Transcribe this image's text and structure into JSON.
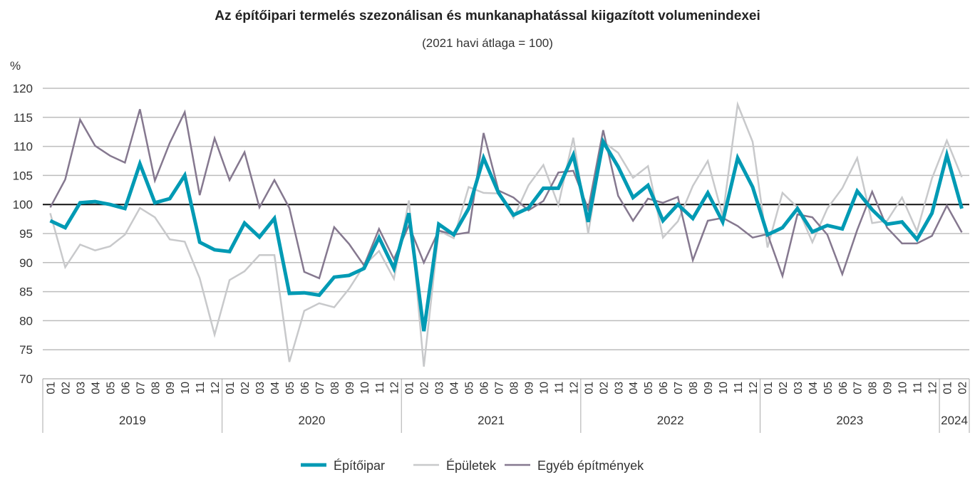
{
  "chart_data": {
    "type": "line",
    "title": "Az építőipari termelés szezonálisan és munkanaphatással kiigazított volumenindexei",
    "subtitle": "(2021 havi átlaga = 100)",
    "ylabel": "%",
    "xlabel": "",
    "ylim": [
      70,
      120
    ],
    "yticks": [
      70,
      75,
      80,
      85,
      90,
      95,
      100,
      105,
      110,
      115,
      120
    ],
    "reference_line": 100,
    "grid": true,
    "legend_position": "bottom",
    "months": [
      "01",
      "02",
      "03",
      "04",
      "05",
      "06",
      "07",
      "08",
      "09",
      "10",
      "11",
      "12",
      "01",
      "02",
      "03",
      "04",
      "05",
      "06",
      "07",
      "08",
      "09",
      "10",
      "11",
      "12",
      "01",
      "02",
      "03",
      "04",
      "05",
      "06",
      "07",
      "08",
      "09",
      "10",
      "11",
      "12",
      "01",
      "02",
      "03",
      "04",
      "05",
      "06",
      "07",
      "08",
      "09",
      "10",
      "11",
      "12",
      "01",
      "02",
      "03",
      "04",
      "05",
      "06",
      "07",
      "08",
      "09",
      "10",
      "11",
      "12",
      "01",
      "02"
    ],
    "years": [
      {
        "label": "2019",
        "months": 12
      },
      {
        "label": "2020",
        "months": 12
      },
      {
        "label": "2021",
        "months": 12
      },
      {
        "label": "2022",
        "months": 12
      },
      {
        "label": "2023",
        "months": 12
      },
      {
        "label": "2024",
        "months": 2
      }
    ],
    "series": [
      {
        "name": "Építőipar",
        "color": "#009ab4",
        "width": 5,
        "values": [
          97.2,
          96.0,
          100.3,
          100.5,
          100.0,
          99.3,
          107.0,
          100.3,
          101.0,
          105.0,
          93.5,
          92.2,
          91.9,
          96.8,
          94.4,
          97.6,
          84.7,
          84.8,
          84.4,
          87.5,
          87.8,
          89.0,
          94.3,
          89.0,
          98.5,
          78.2,
          96.6,
          94.8,
          99.3,
          108.0,
          102.0,
          98.2,
          99.4,
          102.8,
          102.8,
          108.5,
          97.0,
          110.8,
          106.5,
          101.2,
          103.3,
          97.2,
          100.0,
          97.6,
          102.0,
          97.0,
          108.0,
          103.0,
          94.8,
          96.0,
          99.3,
          95.3,
          96.4,
          95.8,
          102.3,
          99.1,
          96.6,
          97.0,
          94.0,
          98.5,
          108.5,
          99.3
        ]
      },
      {
        "name": "Épületek",
        "color": "#c8c9cb",
        "width": 2.5,
        "values": [
          98.5,
          89.2,
          93.1,
          92.1,
          92.8,
          94.8,
          99.4,
          97.8,
          94.0,
          93.6,
          87.3,
          77.6,
          87.0,
          88.5,
          91.3,
          91.3,
          72.9,
          81.7,
          83.0,
          82.3,
          85.5,
          89.5,
          92.0,
          87.2,
          100.7,
          72.1,
          95.5,
          94.2,
          103.0,
          102.0,
          101.9,
          97.7,
          103.3,
          106.8,
          99.9,
          111.5,
          95.0,
          110.8,
          108.9,
          104.6,
          106.6,
          94.3,
          97.1,
          103.2,
          107.5,
          98.0,
          117.2,
          110.8,
          92.6,
          102.0,
          99.5,
          93.5,
          99.3,
          102.8,
          108.0,
          96.8,
          97.2,
          101.2,
          95.4,
          104.5,
          111.0,
          104.7
        ]
      },
      {
        "name": "Egyéb építmények",
        "color": "#85788f",
        "width": 2.5,
        "values": [
          99.5,
          104.3,
          114.6,
          110.1,
          108.4,
          107.2,
          116.4,
          104.1,
          110.6,
          115.9,
          101.6,
          111.4,
          104.2,
          109.0,
          99.5,
          104.2,
          99.4,
          88.4,
          87.3,
          96.1,
          93.2,
          89.5,
          95.8,
          90.6,
          96.4,
          90.0,
          95.5,
          94.8,
          95.2,
          112.3,
          102.4,
          101.2,
          99.0,
          100.6,
          105.5,
          105.8,
          99.2,
          112.8,
          101.5,
          97.2,
          101.0,
          100.3,
          101.3,
          90.4,
          97.2,
          97.7,
          96.3,
          94.3,
          94.9,
          87.7,
          98.3,
          97.8,
          94.8,
          88.0,
          95.6,
          102.2,
          96.0,
          93.3,
          93.3,
          94.6,
          99.8,
          95.2
        ]
      }
    ]
  }
}
